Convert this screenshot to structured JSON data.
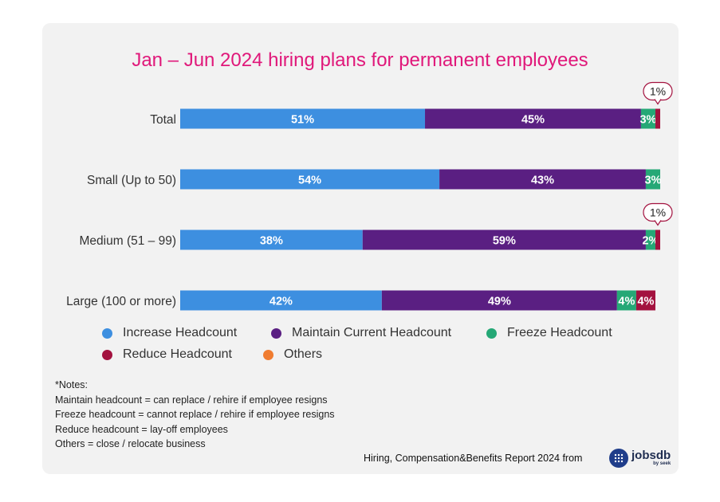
{
  "colors": {
    "increase": "#3d8fe0",
    "maintain": "#5a1f82",
    "freeze": "#25a876",
    "reduce": "#a3123f",
    "others": "#f07c30",
    "title": "#e0187a"
  },
  "chart_data": {
    "type": "bar",
    "orientation": "horizontal",
    "stacked": true,
    "title": "Jan – Jun 2024 hiring plans for permanent employees",
    "categories": [
      "Total",
      "Small (Up to 50)",
      "Medium (51 – 99)",
      "Large (100 or more)"
    ],
    "series": [
      {
        "name": "Increase Headcount",
        "values": [
          51,
          54,
          38,
          42
        ],
        "labels": [
          "51%",
          "54%",
          "38%",
          "42%"
        ],
        "color": "#3d8fe0"
      },
      {
        "name": "Maintain Current Headcount",
        "values": [
          45,
          43,
          59,
          49
        ],
        "labels": [
          "45%",
          "43%",
          "59%",
          "49%"
        ],
        "color": "#5a1f82"
      },
      {
        "name": "Freeze Headcount",
        "values": [
          3,
          3,
          2,
          4
        ],
        "labels": [
          "3%",
          "3%",
          "2%",
          "4%"
        ],
        "color": "#25a876"
      },
      {
        "name": "Reduce Headcount",
        "values": [
          1,
          0,
          1,
          4
        ],
        "labels": [
          "1%",
          "",
          "1%",
          "4%"
        ],
        "callout": [
          true,
          false,
          true,
          false
        ],
        "color": "#a3123f"
      },
      {
        "name": "Others",
        "values": [
          0,
          0,
          0,
          0
        ],
        "labels": [
          "",
          "",
          "",
          ""
        ],
        "color": "#f07c30"
      }
    ],
    "xlim": [
      0,
      100
    ],
    "grid": false,
    "legend_position": "bottom"
  },
  "notes": [
    "*Notes:",
    "Maintain headcount = can replace / rehire if employee resigns",
    "Freeze headcount = cannot replace / rehire if employee resigns",
    "Reduce headcount = lay-off employees",
    "Others = close / relocate business"
  ],
  "footer": {
    "source": "Hiring, Compensation&Benefits Report 2024 from",
    "brand": "jobsdb",
    "brand_sub": "by seek",
    "logo_icon": "jobsdb-dot-logo-icon"
  }
}
